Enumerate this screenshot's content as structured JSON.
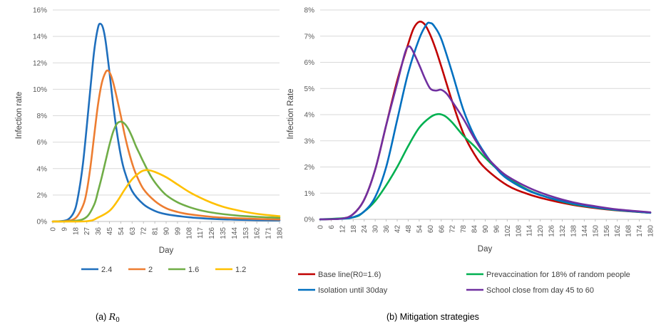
{
  "chart_data": [
    {
      "type": "line",
      "caption_prefix": "(a) ",
      "caption_math": "R",
      "caption_sub": "0",
      "xlabel": "Day",
      "ylabel": "Infection rate",
      "xlim": [
        0,
        180
      ],
      "ylim": [
        0,
        16
      ],
      "y_ticks": [
        "0%",
        "2%",
        "4%",
        "6%",
        "8%",
        "10%",
        "12%",
        "14%",
        "16%"
      ],
      "x_ticks": [
        "0",
        "9",
        "18",
        "27",
        "36",
        "45",
        "54",
        "63",
        "72",
        "81",
        "90",
        "99",
        "108",
        "117",
        "126",
        "135",
        "144",
        "153",
        "162",
        "171",
        "180"
      ],
      "legend_position": "bottom",
      "grid": true,
      "series": [
        {
          "name": "2.4",
          "color": "#1f6fbd",
          "points": [
            [
              0,
              0
            ],
            [
              9,
              0.05
            ],
            [
              14,
              0.3
            ],
            [
              18,
              1.0
            ],
            [
              21,
              2.4
            ],
            [
              24,
              4.4
            ],
            [
              27,
              7.2
            ],
            [
              30,
              10.2
            ],
            [
              33,
              13.0
            ],
            [
              36,
              14.7
            ],
            [
              38,
              14.95
            ],
            [
              40,
              14.6
            ],
            [
              42,
              13.6
            ],
            [
              45,
              11.3
            ],
            [
              48,
              8.8
            ],
            [
              51,
              6.7
            ],
            [
              54,
              5.0
            ],
            [
              57,
              3.8
            ],
            [
              63,
              2.3
            ],
            [
              72,
              1.3
            ],
            [
              81,
              0.8
            ],
            [
              90,
              0.55
            ],
            [
              108,
              0.32
            ],
            [
              126,
              0.2
            ],
            [
              144,
              0.14
            ],
            [
              162,
              0.1
            ],
            [
              180,
              0.08
            ]
          ]
        },
        {
          "name": "2",
          "color": "#ed7d31",
          "points": [
            [
              0,
              0
            ],
            [
              9,
              0.02
            ],
            [
              18,
              0.25
            ],
            [
              24,
              1.2
            ],
            [
              27,
              2.3
            ],
            [
              30,
              4.2
            ],
            [
              33,
              6.6
            ],
            [
              36,
              8.9
            ],
            [
              39,
              10.5
            ],
            [
              42,
              11.3
            ],
            [
              44,
              11.4
            ],
            [
              46,
              11.1
            ],
            [
              48,
              10.5
            ],
            [
              51,
              9.3
            ],
            [
              54,
              8.0
            ],
            [
              57,
              6.6
            ],
            [
              60,
              5.4
            ],
            [
              63,
              4.4
            ],
            [
              66,
              3.6
            ],
            [
              72,
              2.45
            ],
            [
              81,
              1.55
            ],
            [
              90,
              1.0
            ],
            [
              99,
              0.72
            ],
            [
              108,
              0.55
            ],
            [
              126,
              0.35
            ],
            [
              144,
              0.25
            ],
            [
              162,
              0.19
            ],
            [
              180,
              0.15
            ]
          ]
        },
        {
          "name": "1.6",
          "color": "#70ad47",
          "points": [
            [
              0,
              0
            ],
            [
              18,
              0.05
            ],
            [
              27,
              0.35
            ],
            [
              33,
              1.3
            ],
            [
              36,
              2.3
            ],
            [
              39,
              3.4
            ],
            [
              42,
              4.6
            ],
            [
              45,
              5.8
            ],
            [
              48,
              6.8
            ],
            [
              51,
              7.4
            ],
            [
              54,
              7.55
            ],
            [
              57,
              7.4
            ],
            [
              60,
              7.0
            ],
            [
              63,
              6.4
            ],
            [
              66,
              5.7
            ],
            [
              69,
              5.1
            ],
            [
              72,
              4.5
            ],
            [
              78,
              3.4
            ],
            [
              84,
              2.6
            ],
            [
              90,
              2.0
            ],
            [
              99,
              1.45
            ],
            [
              108,
              1.1
            ],
            [
              117,
              0.85
            ],
            [
              126,
              0.68
            ],
            [
              135,
              0.56
            ],
            [
              144,
              0.47
            ],
            [
              153,
              0.4
            ],
            [
              162,
              0.35
            ],
            [
              171,
              0.31
            ],
            [
              180,
              0.28
            ]
          ]
        },
        {
          "name": "1.2",
          "color": "#ffc000",
          "points": [
            [
              0,
              0
            ],
            [
              27,
              0.02
            ],
            [
              36,
              0.3
            ],
            [
              45,
              0.8
            ],
            [
              51,
              1.5
            ],
            [
              57,
              2.4
            ],
            [
              63,
              3.2
            ],
            [
              69,
              3.7
            ],
            [
              72,
              3.85
            ],
            [
              76,
              3.88
            ],
            [
              81,
              3.75
            ],
            [
              90,
              3.35
            ],
            [
              99,
              2.8
            ],
            [
              108,
              2.25
            ],
            [
              117,
              1.8
            ],
            [
              126,
              1.42
            ],
            [
              135,
              1.12
            ],
            [
              144,
              0.9
            ],
            [
              153,
              0.72
            ],
            [
              162,
              0.58
            ],
            [
              171,
              0.48
            ],
            [
              180,
              0.4
            ]
          ]
        }
      ]
    },
    {
      "type": "line",
      "caption": "(b) Mitigation strategies",
      "xlabel": "Day",
      "ylabel": "Infection Rate",
      "xlim": [
        0,
        180
      ],
      "ylim": [
        0,
        8
      ],
      "y_ticks": [
        "0%",
        "1%",
        "2%",
        "3%",
        "4%",
        "5%",
        "6%",
        "7%",
        "8%"
      ],
      "x_ticks": [
        "0",
        "6",
        "12",
        "18",
        "24",
        "30",
        "36",
        "42",
        "48",
        "54",
        "60",
        "66",
        "72",
        "78",
        "84",
        "90",
        "96",
        "102",
        "108",
        "114",
        "120",
        "126",
        "132",
        "138",
        "144",
        "150",
        "156",
        "162",
        "168",
        "174",
        "180"
      ],
      "legend_position": "bottom",
      "grid": true,
      "series": [
        {
          "name": "Base line(R0=1.6)",
          "color": "#c00000",
          "points": [
            [
              0,
              0
            ],
            [
              12,
              0.03
            ],
            [
              18,
              0.2
            ],
            [
              24,
              0.75
            ],
            [
              30,
              1.9
            ],
            [
              36,
              3.6
            ],
            [
              42,
              5.3
            ],
            [
              48,
              6.7
            ],
            [
              51,
              7.3
            ],
            [
              54,
              7.55
            ],
            [
              57,
              7.45
            ],
            [
              60,
              7.05
            ],
            [
              63,
              6.5
            ],
            [
              66,
              5.85
            ],
            [
              72,
              4.5
            ],
            [
              78,
              3.3
            ],
            [
              84,
              2.5
            ],
            [
              90,
              1.95
            ],
            [
              102,
              1.3
            ],
            [
              114,
              0.95
            ],
            [
              126,
              0.72
            ],
            [
              138,
              0.55
            ],
            [
              150,
              0.43
            ],
            [
              162,
              0.34
            ],
            [
              180,
              0.25
            ]
          ]
        },
        {
          "name": "Prevaccination for 18% of random people",
          "color": "#00b050",
          "points": [
            [
              0,
              0
            ],
            [
              18,
              0.08
            ],
            [
              24,
              0.3
            ],
            [
              30,
              0.7
            ],
            [
              36,
              1.3
            ],
            [
              42,
              2.0
            ],
            [
              48,
              2.8
            ],
            [
              54,
              3.5
            ],
            [
              60,
              3.9
            ],
            [
              64,
              4.02
            ],
            [
              68,
              3.95
            ],
            [
              72,
              3.7
            ],
            [
              78,
              3.2
            ],
            [
              84,
              2.8
            ],
            [
              90,
              2.35
            ],
            [
              96,
              1.95
            ],
            [
              102,
              1.6
            ],
            [
              114,
              1.1
            ],
            [
              126,
              0.8
            ],
            [
              138,
              0.58
            ],
            [
              150,
              0.45
            ],
            [
              162,
              0.35
            ],
            [
              180,
              0.25
            ]
          ]
        },
        {
          "name": "Isolation until 30day",
          "color": "#0070c0",
          "points": [
            [
              0,
              0
            ],
            [
              12,
              0.02
            ],
            [
              18,
              0.08
            ],
            [
              24,
              0.3
            ],
            [
              30,
              0.85
            ],
            [
              36,
              2.0
            ],
            [
              42,
              3.8
            ],
            [
              48,
              5.6
            ],
            [
              54,
              6.9
            ],
            [
              58,
              7.45
            ],
            [
              60,
              7.5
            ],
            [
              62,
              7.4
            ],
            [
              66,
              6.9
            ],
            [
              72,
              5.6
            ],
            [
              78,
              4.2
            ],
            [
              84,
              3.2
            ],
            [
              90,
              2.5
            ],
            [
              96,
              1.95
            ],
            [
              102,
              1.55
            ],
            [
              114,
              1.08
            ],
            [
              126,
              0.8
            ],
            [
              138,
              0.6
            ],
            [
              150,
              0.46
            ],
            [
              162,
              0.36
            ],
            [
              180,
              0.25
            ]
          ]
        },
        {
          "name": "School close from day 45 to 60",
          "color": "#7030a0",
          "points": [
            [
              0,
              0
            ],
            [
              12,
              0.03
            ],
            [
              18,
              0.2
            ],
            [
              24,
              0.75
            ],
            [
              30,
              1.9
            ],
            [
              36,
              3.6
            ],
            [
              42,
              5.2
            ],
            [
              46,
              6.3
            ],
            [
              48,
              6.6
            ],
            [
              50,
              6.5
            ],
            [
              54,
              5.9
            ],
            [
              57,
              5.4
            ],
            [
              60,
              5.0
            ],
            [
              63,
              4.92
            ],
            [
              66,
              4.95
            ],
            [
              69,
              4.8
            ],
            [
              72,
              4.5
            ],
            [
              78,
              3.85
            ],
            [
              84,
              3.1
            ],
            [
              90,
              2.45
            ],
            [
              96,
              2.0
            ],
            [
              102,
              1.65
            ],
            [
              114,
              1.2
            ],
            [
              126,
              0.88
            ],
            [
              138,
              0.65
            ],
            [
              150,
              0.5
            ],
            [
              162,
              0.38
            ],
            [
              180,
              0.27
            ]
          ]
        }
      ]
    }
  ]
}
